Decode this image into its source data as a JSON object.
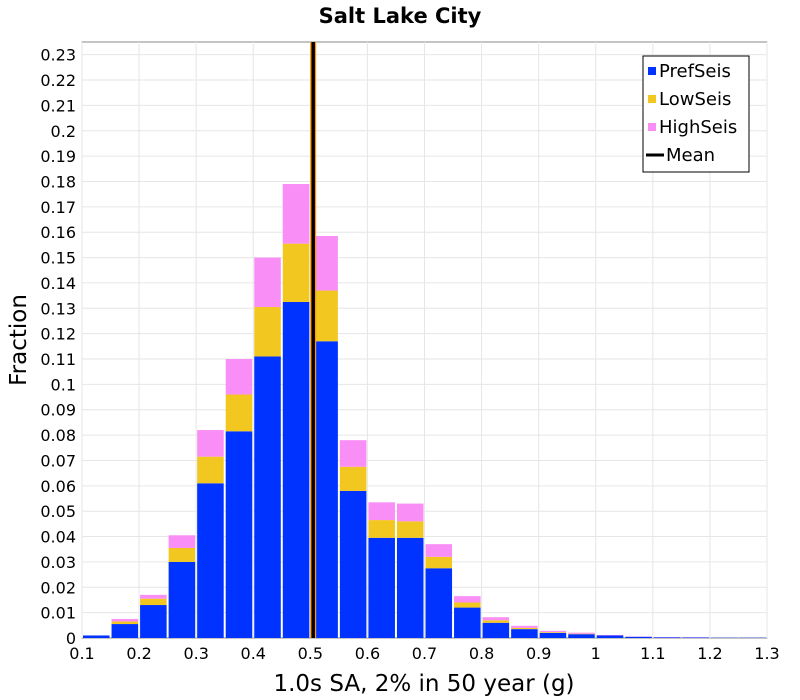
{
  "chart_data": {
    "type": "bar",
    "stacked": true,
    "title": "Salt Lake City",
    "xlabel": "1.0s SA, 2% in 50 year (g)",
    "ylabel": "Fraction",
    "xlim": [
      0.1,
      1.3
    ],
    "ylim": [
      0,
      0.235
    ],
    "grid": true,
    "legend_position": "top-right",
    "bin_width": 0.05,
    "x": [
      0.1,
      0.15,
      0.2,
      0.25,
      0.3,
      0.35,
      0.4,
      0.45,
      0.5,
      0.55,
      0.6,
      0.65,
      0.7,
      0.75,
      0.8,
      0.85,
      0.9,
      0.95,
      1.0,
      1.05,
      1.1,
      1.15,
      1.2,
      1.25
    ],
    "series": [
      {
        "name": "PrefSeis",
        "color": "#0033ff",
        "values": [
          0.001,
          0.0055,
          0.013,
          0.03,
          0.061,
          0.0815,
          0.111,
          0.1325,
          0.117,
          0.058,
          0.0395,
          0.0395,
          0.0275,
          0.012,
          0.006,
          0.0035,
          0.002,
          0.0015,
          0.001,
          0.0005,
          0.0003,
          0.0002,
          0.0001,
          0.0001
        ]
      },
      {
        "name": "LowSeis",
        "color": "#f2c820",
        "values": [
          0.0,
          0.001,
          0.0025,
          0.0055,
          0.0105,
          0.0145,
          0.0195,
          0.023,
          0.02,
          0.0095,
          0.007,
          0.0065,
          0.0045,
          0.002,
          0.001,
          0.0005,
          0.0003,
          0.0002,
          0.0,
          0.0,
          0.0,
          0.0,
          0.0,
          0.0
        ]
      },
      {
        "name": "HighSeis",
        "color": "#f98ef6",
        "values": [
          0.0,
          0.001,
          0.0015,
          0.005,
          0.0105,
          0.014,
          0.0195,
          0.0235,
          0.0215,
          0.0105,
          0.007,
          0.007,
          0.005,
          0.0025,
          0.0012,
          0.0008,
          0.0005,
          0.0004,
          0.0002,
          0.0001,
          0.0001,
          0.0001,
          0.0,
          0.0
        ]
      }
    ],
    "mean": {
      "name": "Mean",
      "x": 0.505,
      "color": "#000000"
    },
    "mean_border_color": "#ff9900",
    "x_ticks": [
      "0.1",
      "0.2",
      "0.3",
      "0.4",
      "0.5",
      "0.6",
      "0.7",
      "0.8",
      "0.9",
      "1",
      "1.1",
      "1.2",
      "1.3"
    ],
    "y_ticks": [
      "0",
      "0.01",
      "0.02",
      "0.03",
      "0.04",
      "0.05",
      "0.06",
      "0.07",
      "0.08",
      "0.09",
      "0.1",
      "0.11",
      "0.12",
      "0.13",
      "0.14",
      "0.15",
      "0.16",
      "0.17",
      "0.18",
      "0.19",
      "0.2",
      "0.21",
      "0.22",
      "0.23"
    ]
  }
}
